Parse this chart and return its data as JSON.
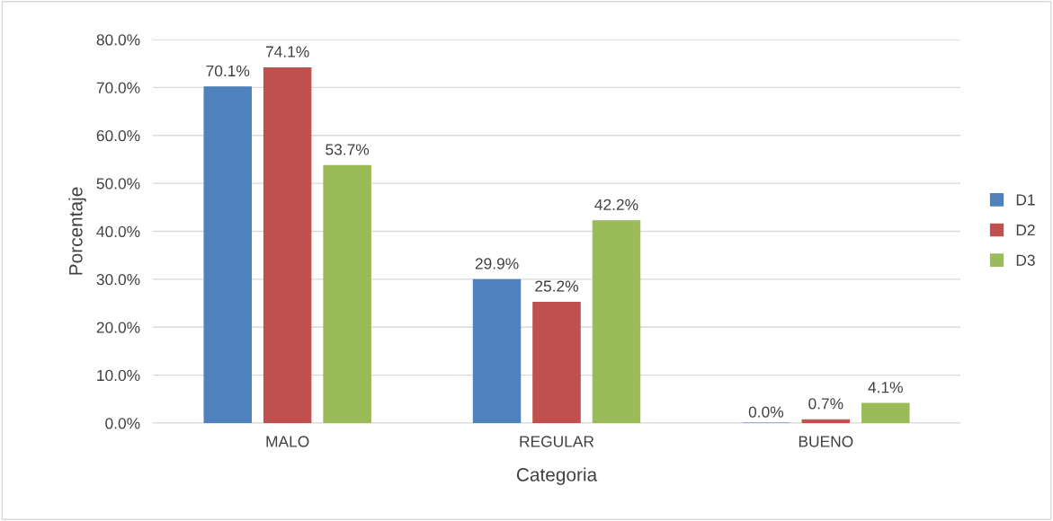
{
  "chart_data": {
    "type": "bar",
    "xlabel": "Categoria",
    "ylabel": "Porcentaje",
    "categories": [
      "MALO",
      "REGULAR",
      "BUENO"
    ],
    "series": [
      {
        "name": "D1",
        "color": "#4f81bd",
        "values": [
          70.1,
          29.9,
          0.0
        ],
        "value_labels": [
          "70.1%",
          "29.9%",
          "0.0%"
        ]
      },
      {
        "name": "D2",
        "color": "#c0504d",
        "values": [
          74.1,
          25.2,
          0.7
        ],
        "value_labels": [
          "74.1%",
          "25.2%",
          "0.7%"
        ]
      },
      {
        "name": "D3",
        "color": "#9bbb59",
        "values": [
          53.7,
          42.2,
          4.1
        ],
        "value_labels": [
          "53.7%",
          "42.2%",
          "4.1%"
        ]
      }
    ],
    "ylim": [
      0,
      80
    ],
    "yticks": [
      {
        "value": 0,
        "label": "0.0%"
      },
      {
        "value": 10,
        "label": "10.0%"
      },
      {
        "value": 20,
        "label": "20.0%"
      },
      {
        "value": 30,
        "label": "30.0%"
      },
      {
        "value": 40,
        "label": "40.0%"
      },
      {
        "value": 50,
        "label": "50.0%"
      },
      {
        "value": 60,
        "label": "60.0%"
      },
      {
        "value": 70,
        "label": "70.0%"
      },
      {
        "value": 80,
        "label": "80.0%"
      }
    ],
    "grid": "y",
    "legend": "right"
  }
}
